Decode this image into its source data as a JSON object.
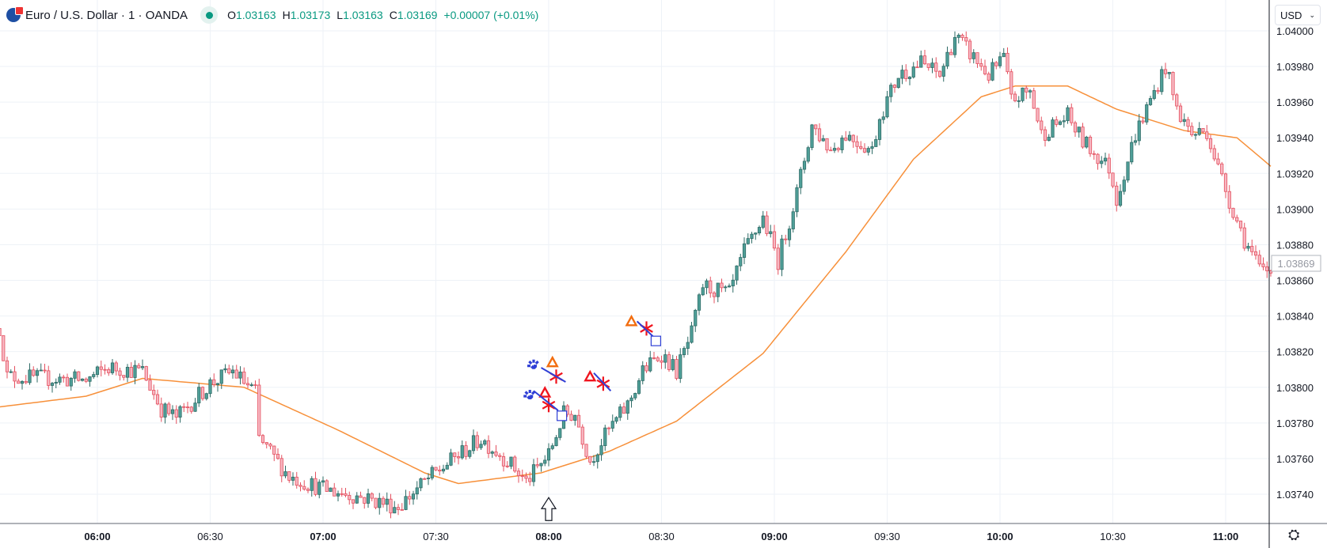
{
  "header": {
    "symbol": "Euro / U.S. Dollar · 1 · OANDA",
    "o_label": "O",
    "o": "1.03163",
    "h_label": "H",
    "h": "1.03173",
    "l_label": "L",
    "l": "1.03163",
    "c_label": "C",
    "c": "1.03169",
    "change": "+0.00007 (+0.01%)"
  },
  "currency_button": "USD",
  "colors": {
    "up_fill": "#4f9f98",
    "up_border": "#2e6b66",
    "down_fill": "#f7b6c1",
    "down_border": "#e4505f",
    "ma": "#f7903a",
    "grid": "#eef2f7",
    "blue": "#2f3fd6",
    "red": "#f0141e",
    "orange": "#f26d0f"
  },
  "chart_data": {
    "type": "candlestick",
    "title": "Euro / U.S. Dollar · 1 · OANDA",
    "x_unit": "minutes from 06:00",
    "xlim": [
      -26,
      312
    ],
    "ylim": [
      1.03727,
      1.04002
    ],
    "x_ticks": [
      {
        "t": 0,
        "label": "06:00",
        "bold": true
      },
      {
        "t": 30,
        "label": "06:30"
      },
      {
        "t": 60,
        "label": "07:00",
        "bold": true
      },
      {
        "t": 90,
        "label": "07:30"
      },
      {
        "t": 120,
        "label": "08:00",
        "bold": true
      },
      {
        "t": 150,
        "label": "08:30"
      },
      {
        "t": 180,
        "label": "09:00",
        "bold": true
      },
      {
        "t": 210,
        "label": "09:30"
      },
      {
        "t": 240,
        "label": "10:00",
        "bold": true
      },
      {
        "t": 270,
        "label": "10:30"
      },
      {
        "t": 300,
        "label": "11:00",
        "bold": true
      }
    ],
    "y_ticks": [
      "1.04000",
      "1.03980",
      "1.03960",
      "1.03940",
      "1.03920",
      "1.03900",
      "1.03880",
      "1.03860",
      "1.03840",
      "1.03820",
      "1.03800",
      "1.03780",
      "1.03760",
      "1.03740"
    ],
    "current_price": "1.03869",
    "price_path": [
      [
        -26,
        1.03833
      ],
      [
        -24,
        1.03806
      ],
      [
        -3,
        1.03804
      ],
      [
        3,
        1.03811
      ],
      [
        12,
        1.03809
      ],
      [
        17,
        1.03788
      ],
      [
        21,
        1.03783
      ],
      [
        30,
        1.03802
      ],
      [
        36,
        1.03809
      ],
      [
        42,
        1.03797
      ],
      [
        43,
        1.03771
      ],
      [
        51,
        1.0375
      ],
      [
        60,
        1.03743
      ],
      [
        71,
        1.03738
      ],
      [
        80,
        1.03733
      ],
      [
        87,
        1.03747
      ],
      [
        96,
        1.03762
      ],
      [
        102,
        1.03771
      ],
      [
        109,
        1.03759
      ],
      [
        114,
        1.03747
      ],
      [
        120,
        1.03762
      ],
      [
        124,
        1.03785
      ],
      [
        127,
        1.03785
      ],
      [
        131,
        1.03759
      ],
      [
        136,
        1.03776
      ],
      [
        141,
        1.0379
      ],
      [
        145,
        1.03809
      ],
      [
        150,
        1.03819
      ],
      [
        154,
        1.03809
      ],
      [
        158,
        1.0383
      ],
      [
        161,
        1.03857
      ],
      [
        168,
        1.03852
      ],
      [
        172,
        1.03876
      ],
      [
        177,
        1.03895
      ],
      [
        181,
        1.03871
      ],
      [
        186,
        1.03909
      ],
      [
        190,
        1.03947
      ],
      [
        195,
        1.03933
      ],
      [
        199,
        1.03942
      ],
      [
        206,
        1.03933
      ],
      [
        208,
        1.03952
      ],
      [
        213,
        1.03975
      ],
      [
        219,
        1.03982
      ],
      [
        224,
        1.03975
      ],
      [
        228,
        1.03997
      ],
      [
        233,
        1.03985
      ],
      [
        237,
        1.03975
      ],
      [
        241,
        1.03985
      ],
      [
        243,
        1.03961
      ],
      [
        248,
        1.03966
      ],
      [
        251,
        1.03942
      ],
      [
        258,
        1.03952
      ],
      [
        262,
        1.03938
      ],
      [
        269,
        1.03923
      ],
      [
        271,
        1.03906
      ],
      [
        276,
        1.03942
      ],
      [
        280,
        1.03961
      ],
      [
        284,
        1.0398
      ],
      [
        287,
        1.03956
      ],
      [
        291,
        1.03942
      ],
      [
        295,
        1.03944
      ],
      [
        298,
        1.03923
      ],
      [
        302,
        1.03899
      ],
      [
        305,
        1.03883
      ],
      [
        309,
        1.03866
      ],
      [
        312,
        1.03865
      ]
    ],
    "moving_average": [
      [
        -26,
        1.03789
      ],
      [
        -3,
        1.03795
      ],
      [
        12,
        1.03805
      ],
      [
        39,
        1.038
      ],
      [
        64,
        1.03776
      ],
      [
        87,
        1.03752
      ],
      [
        96,
        1.03746
      ],
      [
        118,
        1.03752
      ],
      [
        136,
        1.03764
      ],
      [
        154,
        1.03781
      ],
      [
        177,
        1.03819
      ],
      [
        199,
        1.03876
      ],
      [
        217,
        1.03928
      ],
      [
        235,
        1.03963
      ],
      [
        244,
        1.03969
      ],
      [
        258,
        1.03969
      ],
      [
        271,
        1.03956
      ],
      [
        289,
        1.03944
      ],
      [
        303,
        1.0394
      ],
      [
        312,
        1.03924
      ]
    ],
    "annotations": [
      {
        "kind": "asterisk",
        "color": "blue",
        "t": 116,
        "p": 1.03812
      },
      {
        "kind": "triangle",
        "color": "orange",
        "t": 121,
        "p": 1.03814
      },
      {
        "kind": "cross",
        "color": "red",
        "t": 122,
        "p": 1.03806
      },
      {
        "kind": "line",
        "color": "blue",
        "t": 118,
        "p": 1.03811,
        "t2": 124.5,
        "p2": 1.03803
      },
      {
        "kind": "asterisk",
        "color": "blue",
        "t": 115,
        "p": 1.03795
      },
      {
        "kind": "triangle",
        "color": "red",
        "t": 119,
        "p": 1.03797
      },
      {
        "kind": "cross",
        "color": "red",
        "t": 120,
        "p": 1.0379
      },
      {
        "kind": "line",
        "color": "blue",
        "t": 116,
        "p": 1.03798,
        "t2": 122.5,
        "p2": 1.03787
      },
      {
        "kind": "square",
        "color": "blue",
        "t": 123.5,
        "p": 1.03784
      },
      {
        "kind": "triangle",
        "color": "red",
        "t": 131,
        "p": 1.03806
      },
      {
        "kind": "cross",
        "color": "red",
        "t": 134.5,
        "p": 1.03802
      },
      {
        "kind": "line",
        "color": "blue",
        "t": 132,
        "p": 1.03808,
        "t2": 136.5,
        "p2": 1.03798
      },
      {
        "kind": "triangle",
        "color": "orange",
        "t": 142,
        "p": 1.03837
      },
      {
        "kind": "cross",
        "color": "red",
        "t": 146,
        "p": 1.03833
      },
      {
        "kind": "line",
        "color": "blue",
        "t": 143.5,
        "p": 1.03837,
        "t2": 148,
        "p2": 1.03828
      },
      {
        "kind": "square",
        "color": "blue",
        "t": 148.5,
        "p": 1.03826
      },
      {
        "kind": "arrow-up",
        "color": "black",
        "t": 120,
        "p": 1.03739
      }
    ]
  }
}
